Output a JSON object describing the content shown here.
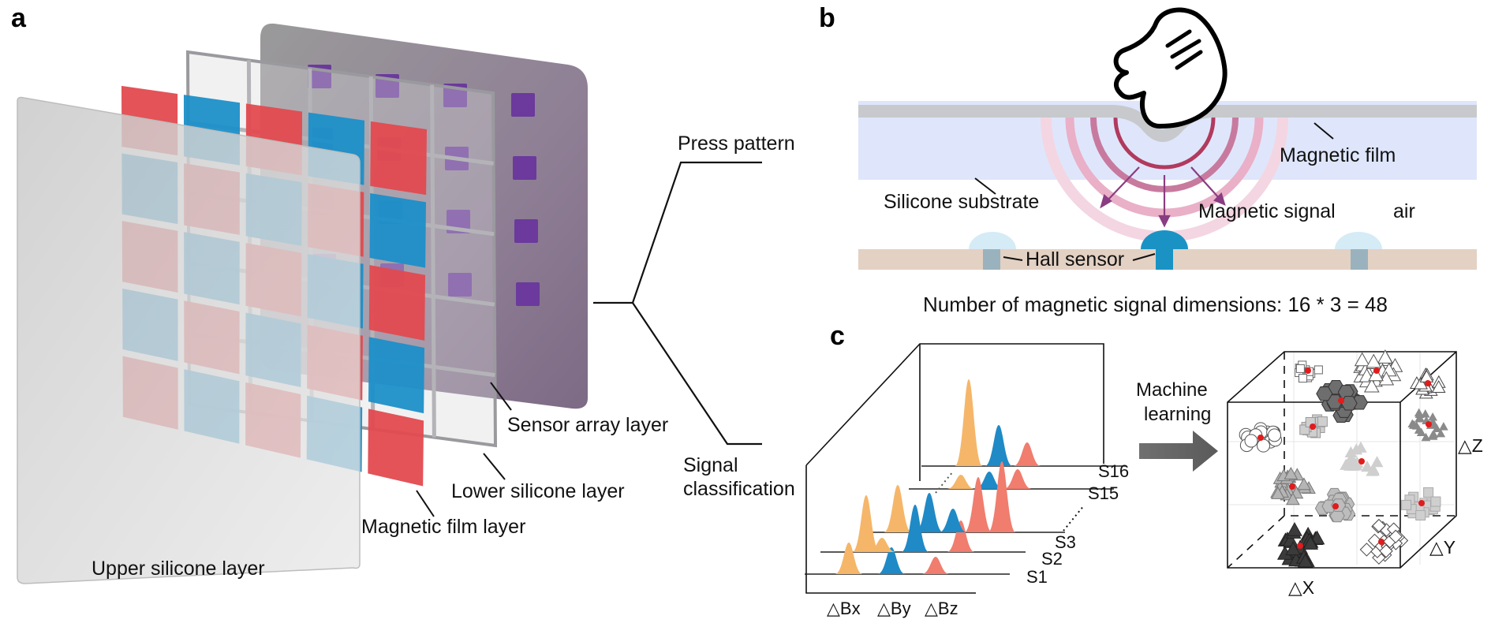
{
  "panel_a": {
    "letter": "a",
    "layers": {
      "sensor_array": "Sensor array layer",
      "lower_silicone": "Lower silicone layer",
      "magnetic_film": "Magnetic film layer",
      "upper_silicone": "Upper silicone layer"
    },
    "colors": {
      "red_tile": "#e24a4f",
      "blue_tile": "#1c8fc8",
      "sensor_chip": "#6b3a9c"
    },
    "branch": {
      "top": "Press pattern",
      "bottom_line1": "Signal",
      "bottom_line2": "classification"
    }
  },
  "panel_b": {
    "letter": "b",
    "labels": {
      "magnetic_film": "Magnetic film",
      "silicone_substrate": "Silicone substrate",
      "magnetic_signal": "Magnetic signal",
      "air": "air",
      "hall_sensor": "Hall sensor"
    },
    "equation": "Number of magnetic signal dimensions: 16 * 3 = 48",
    "colors": {
      "substrate": "#dfe6fb",
      "film": "#c7c9cc",
      "board": "#e3d1c3",
      "sensor": "#1a93c4"
    }
  },
  "panel_c": {
    "letter": "c",
    "arrow_label_line1": "Machine",
    "arrow_label_line2": "learning",
    "signal_rows": [
      "S16",
      "S15",
      "S3",
      "S2",
      "S1"
    ],
    "axes_2d": [
      "△Bx",
      "△By",
      "△Bz"
    ],
    "axes_3d": {
      "x": "△X",
      "y": "△Y",
      "z": "△Z"
    },
    "colors": {
      "bx": "#f5b66a",
      "by": "#1f8ac6",
      "bz": "#f07d6e"
    }
  }
}
